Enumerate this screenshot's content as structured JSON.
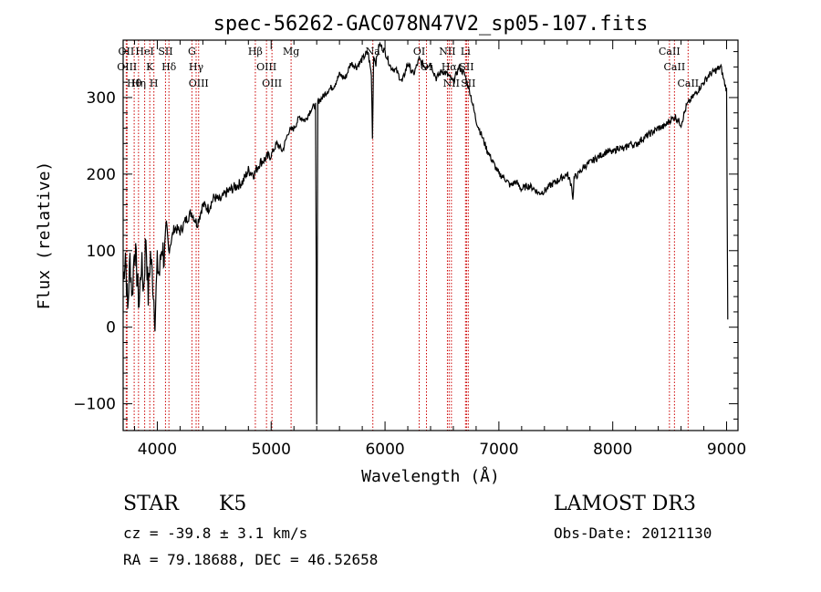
{
  "chart_data": {
    "type": "line",
    "title": "spec-56262-GAC078N47V2_sp05-107.fits",
    "xlabel": "Wavelength (Å)",
    "ylabel": "Flux (relative)",
    "xlim": [
      3700,
      9100
    ],
    "ylim": [
      -135,
      375
    ],
    "xticks": [
      4000,
      5000,
      6000,
      7000,
      8000,
      9000
    ],
    "yticks": [
      -100,
      0,
      100,
      200,
      300
    ],
    "series": [
      {
        "name": "spectrum",
        "x": [
          3700,
          3720,
          3740,
          3760,
          3780,
          3800,
          3820,
          3840,
          3860,
          3880,
          3900,
          3920,
          3940,
          3960,
          3980,
          4000,
          4020,
          4040,
          4060,
          4080,
          4100,
          4150,
          4200,
          4250,
          4300,
          4350,
          4400,
          4450,
          4500,
          4550,
          4600,
          4650,
          4700,
          4750,
          4800,
          4850,
          4900,
          4950,
          5000,
          5050,
          5100,
          5150,
          5200,
          5250,
          5300,
          5350,
          5390,
          5400,
          5410,
          5450,
          5500,
          5550,
          5600,
          5650,
          5700,
          5750,
          5800,
          5850,
          5880,
          5890,
          5900,
          5920,
          5950,
          6000,
          6050,
          6100,
          6150,
          6200,
          6250,
          6300,
          6350,
          6400,
          6450,
          6500,
          6550,
          6600,
          6650,
          6700,
          6750,
          6800,
          6850,
          6900,
          6950,
          7000,
          7050,
          7100,
          7150,
          7200,
          7250,
          7300,
          7350,
          7400,
          7450,
          7500,
          7550,
          7600,
          7640,
          7650,
          7660,
          7700,
          7750,
          7800,
          7850,
          7900,
          7950,
          8000,
          8050,
          8100,
          8150,
          8200,
          8250,
          8300,
          8350,
          8400,
          8450,
          8500,
          8550,
          8600,
          8650,
          8700,
          8750,
          8800,
          8850,
          8900,
          8950,
          8980,
          9000,
          9010
        ],
        "values": [
          60,
          100,
          20,
          90,
          40,
          110,
          70,
          30,
          85,
          50,
          120,
          40,
          95,
          60,
          15,
          80,
          70,
          110,
          90,
          120,
          100,
          130,
          125,
          140,
          150,
          135,
          160,
          155,
          170,
          165,
          175,
          180,
          185,
          190,
          205,
          200,
          215,
          220,
          225,
          240,
          230,
          255,
          260,
          275,
          270,
          285,
          290,
          -130,
          295,
          300,
          310,
          315,
          330,
          325,
          345,
          340,
          350,
          360,
          330,
          250,
          355,
          345,
          370,
          360,
          340,
          335,
          320,
          345,
          330,
          350,
          340,
          345,
          325,
          335,
          330,
          320,
          340,
          330,
          305,
          270,
          250,
          230,
          215,
          200,
          195,
          185,
          190,
          180,
          185,
          182,
          175,
          178,
          185,
          190,
          195,
          200,
          185,
          165,
          195,
          200,
          210,
          215,
          220,
          225,
          230,
          228,
          235,
          232,
          240,
          238,
          245,
          250,
          255,
          260,
          262,
          270,
          275,
          265,
          290,
          300,
          310,
          320,
          330,
          335,
          340,
          320,
          310,
          10
        ],
        "color": "#000000"
      }
    ],
    "line_markers": [
      {
        "wavelength": 3727,
        "label": "OII"
      },
      {
        "wavelength": 3734,
        "label": "OIII"
      },
      {
        "wavelength": 3797,
        "label": "Hθ"
      },
      {
        "wavelength": 3835,
        "label": "Hη"
      },
      {
        "wavelength": 3889,
        "label": "HeI"
      },
      {
        "wavelength": 3934,
        "label": "K"
      },
      {
        "wavelength": 3970,
        "label": "H"
      },
      {
        "wavelength": 4072,
        "label": "SII"
      },
      {
        "wavelength": 4102,
        "label": "Hδ"
      },
      {
        "wavelength": 4304,
        "label": "G"
      },
      {
        "wavelength": 4341,
        "label": "Hγ"
      },
      {
        "wavelength": 4363,
        "label": "OIII"
      },
      {
        "wavelength": 4861,
        "label": "Hβ"
      },
      {
        "wavelength": 4959,
        "label": "OIII"
      },
      {
        "wavelength": 5007,
        "label": "OIII"
      },
      {
        "wavelength": 5175,
        "label": "Mg"
      },
      {
        "wavelength": 5893,
        "label": "Na"
      },
      {
        "wavelength": 6300,
        "label": "OI"
      },
      {
        "wavelength": 6364,
        "label": "OI"
      },
      {
        "wavelength": 6548,
        "label": "NII"
      },
      {
        "wavelength": 6563,
        "label": "Hα"
      },
      {
        "wavelength": 6583,
        "label": "NII"
      },
      {
        "wavelength": 6707,
        "label": "Li"
      },
      {
        "wavelength": 6716,
        "label": "SII"
      },
      {
        "wavelength": 6731,
        "label": "SII"
      },
      {
        "wavelength": 8498,
        "label": "CaII"
      },
      {
        "wavelength": 8542,
        "label": "CaII"
      },
      {
        "wavelength": 8662,
        "label": "CaII"
      }
    ],
    "marker_color": "#cc0000"
  },
  "info": {
    "class_label": "STAR",
    "subclass_label": "K5",
    "survey_label": "LAMOST DR3",
    "cz_text": "cz = -39.8 ± 3.1 km/s",
    "obs_date_text": "Obs-Date: 20121130",
    "radec_text": "RA =  79.18688, DEC =  46.52658"
  }
}
